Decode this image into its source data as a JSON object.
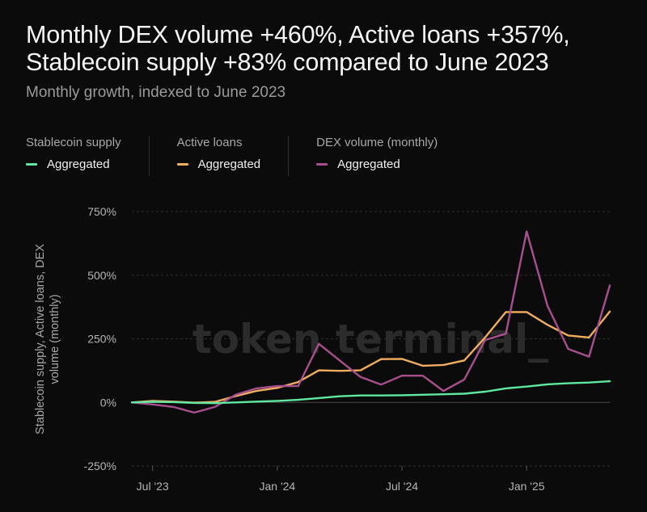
{
  "header": {
    "title": "Monthly DEX volume +460%, Active loans +357%, Stablecoin supply +83% compared to June 2023",
    "subtitle": "Monthly growth, indexed to June 2023"
  },
  "legend": [
    {
      "group": "Stablecoin supply",
      "label": "Aggregated",
      "color": "#5ee8a0"
    },
    {
      "group": "Active loans",
      "label": "Aggregated",
      "color": "#f0ae5e"
    },
    {
      "group": "DEX volume (monthly)",
      "label": "Aggregated",
      "color": "#a84f8e"
    }
  ],
  "watermark": "token terminal_",
  "chart_data": {
    "type": "line",
    "ylabel": "Stablecoin supply, Active loans, DEX volume (monthly)",
    "ylim": [
      -250,
      750
    ],
    "yticks": [
      -250,
      0,
      250,
      500,
      750
    ],
    "ytick_labels": [
      "-250%",
      "0%",
      "250%",
      "500%",
      "750%"
    ],
    "xticks": [
      {
        "label": "Jul '23",
        "index": 1
      },
      {
        "label": "Jan '24",
        "index": 7
      },
      {
        "label": "Jul '24",
        "index": 13
      },
      {
        "label": "Jan '25",
        "index": 19
      }
    ],
    "x": [
      "2023-06",
      "2023-07",
      "2023-08",
      "2023-09",
      "2023-10",
      "2023-11",
      "2023-12",
      "2024-01",
      "2024-02",
      "2024-03",
      "2024-04",
      "2024-05",
      "2024-06",
      "2024-07",
      "2024-08",
      "2024-09",
      "2024-10",
      "2024-11",
      "2024-12",
      "2025-01",
      "2025-02",
      "2025-03",
      "2025-04",
      "2025-05"
    ],
    "series": [
      {
        "name": "Stablecoin supply",
        "color": "#5ee8a0",
        "values": [
          0,
          2,
          1,
          -2,
          -3,
          0,
          3,
          6,
          10,
          17,
          24,
          27,
          27,
          28,
          30,
          32,
          34,
          42,
          55,
          62,
          71,
          75,
          78,
          83
        ]
      },
      {
        "name": "Active loans",
        "color": "#f0ae5e",
        "values": [
          0,
          6,
          3,
          -1,
          2,
          25,
          45,
          57,
          80,
          126,
          124,
          126,
          170,
          171,
          144,
          147,
          165,
          255,
          355,
          355,
          305,
          263,
          255,
          357
        ]
      },
      {
        "name": "DEX volume (monthly)",
        "color": "#a84f8e",
        "values": [
          0,
          -8,
          -18,
          -40,
          -18,
          30,
          55,
          64,
          64,
          230,
          165,
          100,
          70,
          105,
          105,
          45,
          90,
          245,
          270,
          672,
          380,
          210,
          180,
          460
        ]
      }
    ]
  }
}
